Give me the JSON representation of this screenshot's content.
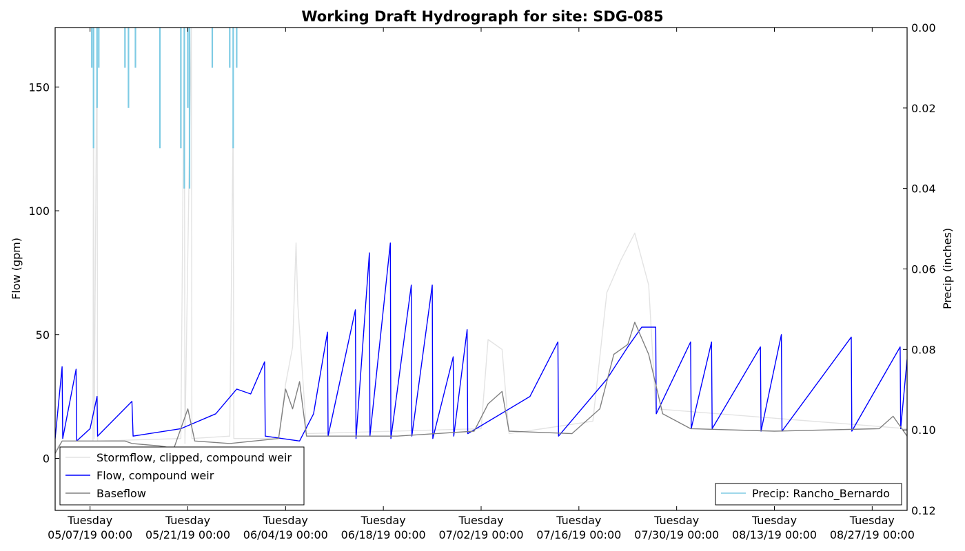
{
  "chart_data": {
    "type": "line",
    "title": "Working Draft Hydrograph for site: SDG-085",
    "ylabel": "Flow (gpm)",
    "ylabel_right": "Precip (inches)",
    "xlabel": "",
    "ylim": [
      -21,
      174
    ],
    "ylim_right": [
      0.12,
      0.0
    ],
    "right_axis_inverted": true,
    "grid": false,
    "x_range": [
      "2019-05-02 00:00",
      "2019-09-01 00:00"
    ],
    "x_ticks": [
      {
        "date": "2019-05-07 00:00",
        "line1": "Tuesday",
        "line2": "05/07/19 00:00"
      },
      {
        "date": "2019-05-21 00:00",
        "line1": "Tuesday",
        "line2": "05/21/19 00:00"
      },
      {
        "date": "2019-06-04 00:00",
        "line1": "Tuesday",
        "line2": "06/04/19 00:00"
      },
      {
        "date": "2019-06-18 00:00",
        "line1": "Tuesday",
        "line2": "06/18/19 00:00"
      },
      {
        "date": "2019-07-02 00:00",
        "line1": "Tuesday",
        "line2": "07/02/19 00:00"
      },
      {
        "date": "2019-07-16 00:00",
        "line1": "Tuesday",
        "line2": "07/16/19 00:00"
      },
      {
        "date": "2019-07-30 00:00",
        "line1": "Tuesday",
        "line2": "07/30/19 00:00"
      },
      {
        "date": "2019-08-13 00:00",
        "line1": "Tuesday",
        "line2": "08/13/19 00:00"
      },
      {
        "date": "2019-08-27 00:00",
        "line1": "Tuesday",
        "line2": "08/27/19 00:00"
      }
    ],
    "y_ticks": [
      0,
      50,
      100,
      150
    ],
    "y_ticks_right": [
      0.0,
      0.02,
      0.04,
      0.06,
      0.08,
      0.1,
      0.12
    ],
    "y_tick_labels_right": [
      "0.00",
      "0.02",
      "0.04",
      "0.06",
      "0.08",
      "0.10",
      "0.12"
    ],
    "legend_left_placement": "lower-left",
    "legend_right_placement": "lower-right",
    "series": [
      {
        "name": "Stormflow, clipped, compound weir",
        "color": "#e3e3e3",
        "axis": "left",
        "points": [
          [
            "2019-05-02 00:00",
            3
          ],
          [
            "2019-05-03 00:00",
            7
          ],
          [
            "2019-05-07 10:00",
            7
          ],
          [
            "2019-05-07 12:00",
            174
          ],
          [
            "2019-05-07 14:00",
            8
          ],
          [
            "2019-05-08 00:00",
            174
          ],
          [
            "2019-05-08 02:00",
            7
          ],
          [
            "2019-05-20 00:00",
            8
          ],
          [
            "2019-05-20 12:00",
            174
          ],
          [
            "2019-05-20 14:00",
            6
          ],
          [
            "2019-05-21 12:00",
            174
          ],
          [
            "2019-05-21 14:00",
            8
          ],
          [
            "2019-05-27 00:00",
            9
          ],
          [
            "2019-05-27 12:00",
            137
          ],
          [
            "2019-05-27 14:00",
            8
          ],
          [
            "2019-06-03 00:00",
            8
          ],
          [
            "2019-06-04 00:00",
            30
          ],
          [
            "2019-06-05 00:00",
            45
          ],
          [
            "2019-06-05 12:00",
            87
          ],
          [
            "2019-06-05 18:00",
            62
          ],
          [
            "2019-06-07 00:00",
            10
          ],
          [
            "2019-07-02 00:00",
            12
          ],
          [
            "2019-07-03 00:00",
            48
          ],
          [
            "2019-07-05 00:00",
            44
          ],
          [
            "2019-07-06 00:00",
            10
          ],
          [
            "2019-07-18 00:00",
            15
          ],
          [
            "2019-07-20 00:00",
            67
          ],
          [
            "2019-07-22 00:00",
            80
          ],
          [
            "2019-07-24 00:00",
            91
          ],
          [
            "2019-07-26 00:00",
            70
          ],
          [
            "2019-07-27 00:00",
            20
          ],
          [
            "2019-09-01 00:00",
            12
          ]
        ]
      },
      {
        "name": "Flow, compound weir",
        "color": "#0000ff",
        "axis": "left",
        "points": [
          [
            "2019-05-02 00:00",
            8
          ],
          [
            "2019-05-03 00:00",
            37
          ],
          [
            "2019-05-03 02:00",
            8
          ],
          [
            "2019-05-05 00:00",
            36
          ],
          [
            "2019-05-05 02:00",
            7
          ],
          [
            "2019-05-07 00:00",
            12
          ],
          [
            "2019-05-08 00:00",
            25
          ],
          [
            "2019-05-08 02:00",
            9
          ],
          [
            "2019-05-13 00:00",
            23
          ],
          [
            "2019-05-13 04:00",
            9
          ],
          [
            "2019-05-20 00:00",
            12
          ],
          [
            "2019-05-25 00:00",
            18
          ],
          [
            "2019-05-28 00:00",
            28
          ],
          [
            "2019-05-30 00:00",
            26
          ],
          [
            "2019-06-01 00:00",
            39
          ],
          [
            "2019-06-01 02:00",
            9
          ],
          [
            "2019-06-06 00:00",
            7
          ],
          [
            "2019-06-08 00:00",
            18
          ],
          [
            "2019-06-10 00:00",
            51
          ],
          [
            "2019-06-10 02:00",
            9
          ],
          [
            "2019-06-14 00:00",
            60
          ],
          [
            "2019-06-14 02:00",
            8
          ],
          [
            "2019-06-16 00:00",
            83
          ],
          [
            "2019-06-16 02:00",
            9
          ],
          [
            "2019-06-19 00:00",
            87
          ],
          [
            "2019-06-19 02:00",
            8
          ],
          [
            "2019-06-22 00:00",
            70
          ],
          [
            "2019-06-22 02:00",
            9
          ],
          [
            "2019-06-25 00:00",
            70
          ],
          [
            "2019-06-25 02:00",
            8
          ],
          [
            "2019-06-28 00:00",
            41
          ],
          [
            "2019-06-28 02:00",
            9
          ],
          [
            "2019-06-30 00:00",
            52
          ],
          [
            "2019-06-30 02:00",
            10
          ],
          [
            "2019-07-09 00:00",
            25
          ],
          [
            "2019-07-13 00:00",
            47
          ],
          [
            "2019-07-13 02:00",
            9
          ],
          [
            "2019-07-20 00:00",
            32
          ],
          [
            "2019-07-23 00:00",
            45
          ],
          [
            "2019-07-25 00:00",
            53
          ],
          [
            "2019-07-27 00:00",
            53
          ],
          [
            "2019-07-27 02:00",
            18
          ],
          [
            "2019-08-01 00:00",
            47
          ],
          [
            "2019-08-01 02:00",
            12
          ],
          [
            "2019-08-04 00:00",
            47
          ],
          [
            "2019-08-04 02:00",
            12
          ],
          [
            "2019-08-11 00:00",
            45
          ],
          [
            "2019-08-11 02:00",
            11
          ],
          [
            "2019-08-14 00:00",
            50
          ],
          [
            "2019-08-14 02:00",
            11
          ],
          [
            "2019-08-24 00:00",
            49
          ],
          [
            "2019-08-24 02:00",
            11
          ],
          [
            "2019-08-31 00:00",
            45
          ],
          [
            "2019-08-31 02:00",
            12
          ],
          [
            "2019-09-01 00:00",
            40
          ]
        ]
      },
      {
        "name": "Baseflow",
        "color": "#808080",
        "axis": "left",
        "points": [
          [
            "2019-05-02 00:00",
            2
          ],
          [
            "2019-05-03 00:00",
            7
          ],
          [
            "2019-05-12 00:00",
            7
          ],
          [
            "2019-05-13 00:00",
            6
          ],
          [
            "2019-05-17 00:00",
            5
          ],
          [
            "2019-05-19 00:00",
            4
          ],
          [
            "2019-05-21 00:00",
            20
          ],
          [
            "2019-05-22 00:00",
            7
          ],
          [
            "2019-05-27 00:00",
            6
          ],
          [
            "2019-06-03 00:00",
            8
          ],
          [
            "2019-06-04 00:00",
            28
          ],
          [
            "2019-06-05 00:00",
            20
          ],
          [
            "2019-06-06 00:00",
            31
          ],
          [
            "2019-06-07 00:00",
            9
          ],
          [
            "2019-06-20 00:00",
            9
          ],
          [
            "2019-07-01 00:00",
            11
          ],
          [
            "2019-07-03 00:00",
            22
          ],
          [
            "2019-07-05 00:00",
            27
          ],
          [
            "2019-07-06 00:00",
            11
          ],
          [
            "2019-07-15 00:00",
            10
          ],
          [
            "2019-07-19 00:00",
            20
          ],
          [
            "2019-07-21 00:00",
            42
          ],
          [
            "2019-07-23 00:00",
            46
          ],
          [
            "2019-07-24 00:00",
            55
          ],
          [
            "2019-07-26 00:00",
            42
          ],
          [
            "2019-07-28 00:00",
            18
          ],
          [
            "2019-08-01 00:00",
            12
          ],
          [
            "2019-08-13 00:00",
            11
          ],
          [
            "2019-08-28 00:00",
            12
          ],
          [
            "2019-08-30 00:00",
            17
          ],
          [
            "2019-09-01 00:00",
            9
          ]
        ]
      },
      {
        "name": "Precip: Rancho_Bernardo",
        "color": "#7ecbe4",
        "axis": "right",
        "type": "bar",
        "bars": [
          [
            "2019-05-07 06:00",
            0.01
          ],
          [
            "2019-05-07 12:00",
            0.03
          ],
          [
            "2019-05-08 00:00",
            0.02
          ],
          [
            "2019-05-08 06:00",
            0.01
          ],
          [
            "2019-05-12 00:00",
            0.01
          ],
          [
            "2019-05-12 12:00",
            0.02
          ],
          [
            "2019-05-13 12:00",
            0.01
          ],
          [
            "2019-05-17 00:00",
            0.03
          ],
          [
            "2019-05-20 00:00",
            0.03
          ],
          [
            "2019-05-20 12:00",
            0.04
          ],
          [
            "2019-05-21 00:00",
            0.02
          ],
          [
            "2019-05-21 06:00",
            0.04
          ],
          [
            "2019-05-24 12:00",
            0.01
          ],
          [
            "2019-05-27 00:00",
            0.01
          ],
          [
            "2019-05-27 12:00",
            0.03
          ],
          [
            "2019-05-28 00:00",
            0.01
          ]
        ]
      }
    ]
  }
}
